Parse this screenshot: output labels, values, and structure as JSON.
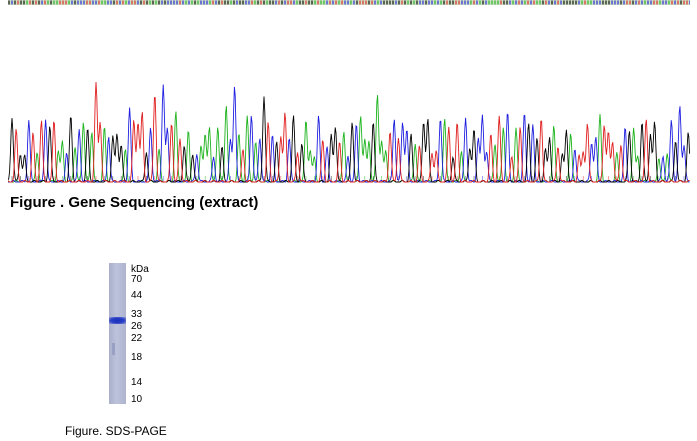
{
  "figure1": {
    "caption": "Figure . Gene Sequencing (extract)",
    "trace_colors": {
      "A": "#1db31d",
      "C": "#1f1fe0",
      "G": "#000000",
      "T": "#e01f1f"
    }
  },
  "figure2": {
    "caption": "Figure. SDS-PAGE",
    "marker_unit": "kDa",
    "markers": [
      "70",
      "44",
      "33",
      "26",
      "22",
      "18",
      "14",
      "10"
    ],
    "band_color": "#1f33c0"
  }
}
